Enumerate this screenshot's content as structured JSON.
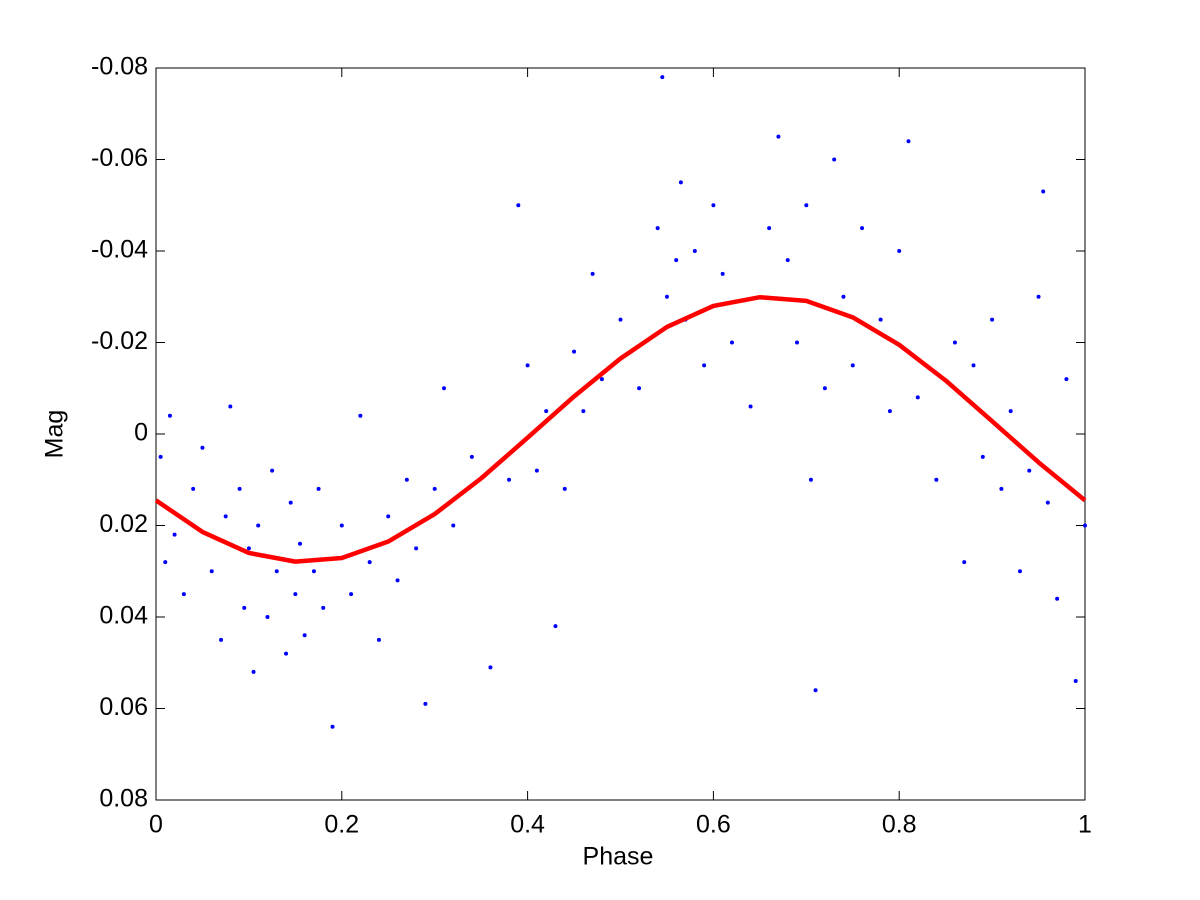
{
  "chart_data": {
    "type": "scatter",
    "xlabel": "Phase",
    "ylabel": "Mag",
    "xlim": [
      0,
      1
    ],
    "xticks": [
      0,
      0.2,
      0.4,
      0.6,
      0.8,
      1
    ],
    "ylim": [
      -0.08,
      0.08
    ],
    "yticks": [
      -0.08,
      -0.06,
      -0.04,
      -0.02,
      0,
      0.02,
      0.04,
      0.06,
      0.08
    ],
    "y_inverted": true,
    "series": [
      {
        "type": "scatter",
        "color": "#0000ff",
        "x": [
          0.005,
          0.01,
          0.015,
          0.02,
          0.03,
          0.04,
          0.05,
          0.06,
          0.07,
          0.075,
          0.08,
          0.09,
          0.095,
          0.1,
          0.105,
          0.11,
          0.12,
          0.125,
          0.13,
          0.14,
          0.145,
          0.15,
          0.155,
          0.16,
          0.17,
          0.175,
          0.18,
          0.19,
          0.2,
          0.21,
          0.22,
          0.23,
          0.24,
          0.25,
          0.26,
          0.27,
          0.28,
          0.29,
          0.3,
          0.31,
          0.32,
          0.34,
          0.36,
          0.38,
          0.39,
          0.4,
          0.41,
          0.42,
          0.43,
          0.44,
          0.45,
          0.46,
          0.47,
          0.48,
          0.5,
          0.52,
          0.54,
          0.545,
          0.55,
          0.56,
          0.565,
          0.57,
          0.58,
          0.59,
          0.6,
          0.61,
          0.62,
          0.64,
          0.66,
          0.67,
          0.68,
          0.69,
          0.7,
          0.705,
          0.71,
          0.72,
          0.73,
          0.74,
          0.75,
          0.76,
          0.78,
          0.79,
          0.8,
          0.81,
          0.82,
          0.84,
          0.86,
          0.87,
          0.88,
          0.89,
          0.9,
          0.91,
          0.92,
          0.93,
          0.94,
          0.95,
          0.955,
          0.96,
          0.97,
          0.98,
          0.99,
          1.0
        ],
        "values": [
          0.005,
          0.028,
          -0.004,
          0.022,
          0.035,
          0.012,
          0.003,
          0.03,
          0.045,
          0.018,
          -0.006,
          0.012,
          0.038,
          0.025,
          0.052,
          0.02,
          0.04,
          0.008,
          0.03,
          0.048,
          0.015,
          0.035,
          0.024,
          0.044,
          0.03,
          0.012,
          0.038,
          0.064,
          0.02,
          0.035,
          -0.004,
          0.028,
          0.045,
          0.018,
          0.032,
          0.01,
          0.025,
          0.059,
          0.012,
          -0.01,
          0.02,
          0.005,
          0.051,
          0.01,
          -0.05,
          -0.015,
          0.008,
          -0.005,
          0.042,
          0.012,
          -0.018,
          -0.005,
          -0.035,
          -0.012,
          -0.025,
          -0.01,
          -0.045,
          -0.078,
          -0.03,
          -0.038,
          -0.055,
          -0.025,
          -0.04,
          -0.015,
          -0.05,
          -0.035,
          -0.02,
          -0.006,
          -0.045,
          -0.065,
          -0.038,
          -0.02,
          -0.05,
          0.01,
          0.056,
          -0.01,
          -0.06,
          -0.03,
          -0.015,
          -0.045,
          -0.025,
          -0.005,
          -0.04,
          -0.064,
          -0.008,
          0.01,
          -0.02,
          0.028,
          -0.015,
          0.005,
          -0.025,
          0.012,
          -0.005,
          0.03,
          0.008,
          -0.03,
          -0.053,
          0.015,
          0.036,
          -0.012,
          0.054,
          0.02
        ]
      },
      {
        "type": "line",
        "color": "#ff0000",
        "x": [
          0,
          0.05,
          0.1,
          0.15,
          0.2,
          0.25,
          0.3,
          0.35,
          0.4,
          0.45,
          0.5,
          0.55,
          0.6,
          0.65,
          0.7,
          0.75,
          0.8,
          0.85,
          0.9,
          0.95,
          1
        ],
        "values": [
          0.0145,
          0.0214,
          0.026,
          0.0279,
          0.0271,
          0.0235,
          0.0175,
          0.0097,
          0.0008,
          -0.0082,
          -0.0165,
          -0.0234,
          -0.028,
          -0.0299,
          -0.0291,
          -0.0255,
          -0.0195,
          -0.0117,
          -0.0028,
          0.0062,
          0.0145
        ]
      }
    ]
  }
}
